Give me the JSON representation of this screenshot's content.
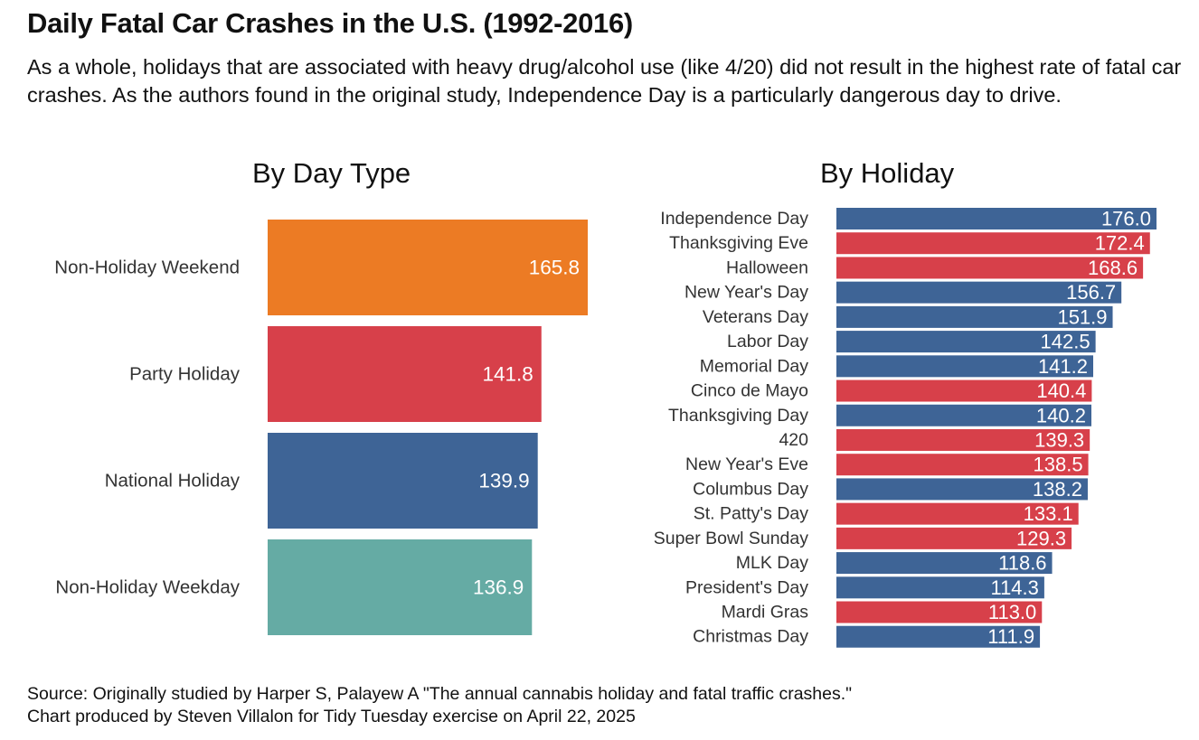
{
  "title": "Daily Fatal Car Crashes in the U.S. (1992-2016)",
  "subtitle": "As a whole, holidays that are associated with heavy drug/alcohol use (like 4/20) did not result in the highest rate of fatal car crashes. As the authors found in the original study, Independence Day is a particularly dangerous day to drive.",
  "caption": {
    "source": "Source: Originally studied by Harper S, Palayew A \"The annual cannabis holiday and fatal traffic crashes.\"",
    "credit": "Chart produced by Steven Villalon for Tidy Tuesday exercise on April 22, 2025"
  },
  "colors": {
    "party": "#d7404a",
    "national": "#3e6496",
    "weekend": "#ec7b24",
    "weekday": "#65aba4"
  },
  "chart_data": [
    {
      "type": "bar",
      "orientation": "horizontal",
      "title": "By Day Type",
      "categories": [
        "Non-Holiday Weekend",
        "Party Holiday",
        "National Holiday",
        "Non-Holiday Weekday"
      ],
      "values": [
        165.8,
        141.8,
        139.9,
        136.9
      ],
      "value_labels": [
        "165.8",
        "141.8",
        "139.9",
        "136.9"
      ],
      "colors": [
        "#ec7b24",
        "#d7404a",
        "#3e6496",
        "#65aba4"
      ],
      "xlim": [
        0,
        165.8
      ],
      "grid": false
    },
    {
      "type": "bar",
      "orientation": "horizontal",
      "title": "By Holiday",
      "categories": [
        "Independence Day",
        "Thanksgiving Eve",
        "Halloween",
        "New Year's Day",
        "Veterans Day",
        "Labor Day",
        "Memorial Day",
        "Cinco de Mayo",
        "Thanksgiving Day",
        "420",
        "New Year's Eve",
        "Columbus Day",
        "St. Patty's Day",
        "Super Bowl Sunday",
        "MLK Day",
        "President's Day",
        "Mardi Gras",
        "Christmas Day"
      ],
      "values": [
        176.0,
        172.4,
        168.6,
        156.7,
        151.9,
        142.5,
        141.2,
        140.4,
        140.2,
        139.3,
        138.5,
        138.2,
        133.1,
        129.3,
        118.6,
        114.3,
        113.0,
        111.9
      ],
      "value_labels": [
        "176.0",
        "172.4",
        "168.6",
        "156.7",
        "151.9",
        "142.5",
        "141.2",
        "140.4",
        "140.2",
        "139.3",
        "138.5",
        "138.2",
        "133.1",
        "129.3",
        "118.6",
        "114.3",
        "113.0",
        "111.9"
      ],
      "colors": [
        "#3e6496",
        "#d7404a",
        "#d7404a",
        "#3e6496",
        "#3e6496",
        "#3e6496",
        "#3e6496",
        "#d7404a",
        "#3e6496",
        "#d7404a",
        "#d7404a",
        "#3e6496",
        "#d7404a",
        "#d7404a",
        "#3e6496",
        "#3e6496",
        "#d7404a",
        "#3e6496"
      ],
      "xlim": [
        0,
        176.0
      ],
      "grid": false
    }
  ]
}
